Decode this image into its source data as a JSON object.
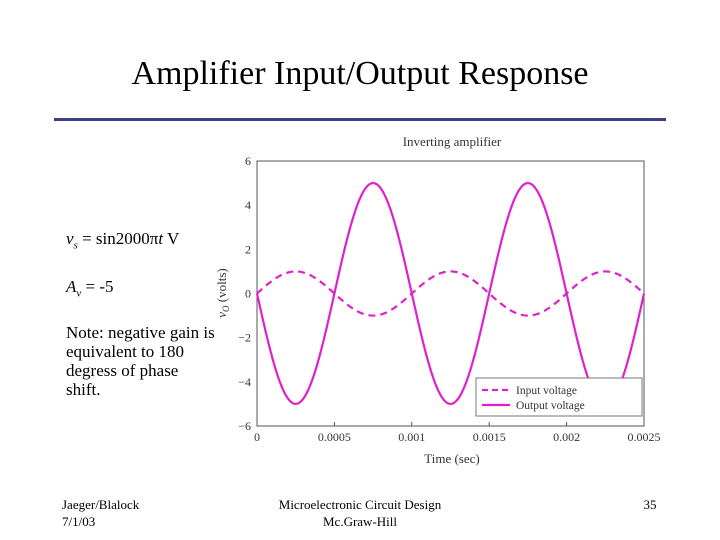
{
  "slide": {
    "title": "Amplifier Input/Output Response"
  },
  "notes": {
    "eq_input": {
      "var": "v",
      "sub": "s",
      "rest": " = sin2000",
      "pi": "π",
      "t": "t",
      "unit": " V"
    },
    "eq_gain": {
      "var": "A",
      "sub": "v",
      "rest": " = -5"
    },
    "note_text": "Note: negative gain is equivalent to 180 degress of phase shift."
  },
  "footer": {
    "left_line1": "Jaeger/Blalock",
    "left_line2": "7/1/03",
    "center_line1": "Microelectronic Circuit Design",
    "center_line2": "Mc.Graw-Hill",
    "page_number": "35"
  },
  "chart_data": {
    "type": "line",
    "title": "Inverting amplifier",
    "xlabel": "Time (sec)",
    "ylabel_symbol": "v",
    "ylabel_sub": "O",
    "ylabel_unit": " (volts)",
    "xlim": [
      0,
      0.0025
    ],
    "ylim": [
      -6,
      6
    ],
    "x_ticks": [
      0,
      0.0005,
      0.001,
      0.0015,
      0.002,
      0.0025
    ],
    "x_tick_labels": [
      "0",
      "0.0005",
      "0.001",
      "0.0015",
      "0.002",
      "0.0025"
    ],
    "y_ticks": [
      -6,
      -4,
      -2,
      0,
      2,
      4,
      6
    ],
    "y_tick_labels": [
      "−6",
      "−4",
      "−2",
      "0",
      "2",
      "4",
      "6"
    ],
    "grid": "horizontal",
    "legend_position": "bottom-right",
    "series": [
      {
        "name": "Input voltage",
        "function": "sin(2000πt)",
        "amplitude": 1,
        "gain": 1,
        "frequency_hz": 1000,
        "color": "#e020c8",
        "dashed": true
      },
      {
        "name": "Output voltage",
        "function": "-5 sin(2000πt)",
        "amplitude": 1,
        "gain": -5,
        "frequency_hz": 1000,
        "color": "#e020c8",
        "dashed": false
      }
    ]
  }
}
